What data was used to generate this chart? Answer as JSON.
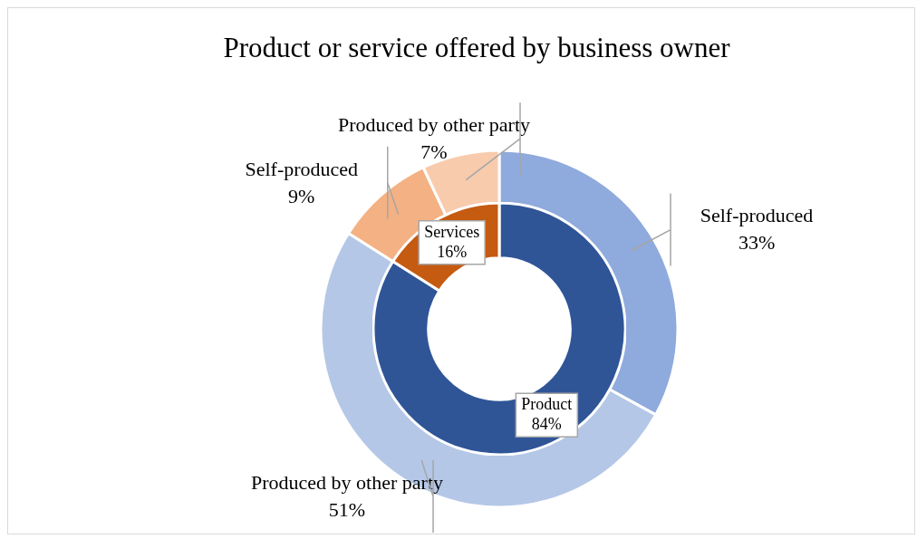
{
  "chart_data": [
    {
      "type": "donut",
      "title": "Product or service offered by business owner",
      "legend": false,
      "categories": [
        "Self-produced",
        "Produced by other party",
        "Self-produced",
        "Produced by other party"
      ],
      "values": [
        33,
        51,
        9,
        7
      ],
      "value_labels": [
        "33%",
        "51%",
        "9%",
        "7%"
      ],
      "colors": [
        "#8faadc",
        "#b4c7e7",
        "#f4b183",
        "#f8cbad"
      ]
    },
    {
      "type": "donut",
      "legend": false,
      "categories": [
        "Product",
        "Services"
      ],
      "values": [
        84,
        16
      ],
      "value_labels": [
        "84%",
        "16%"
      ],
      "colors": [
        "#2f5597",
        "#c55a11"
      ]
    }
  ]
}
